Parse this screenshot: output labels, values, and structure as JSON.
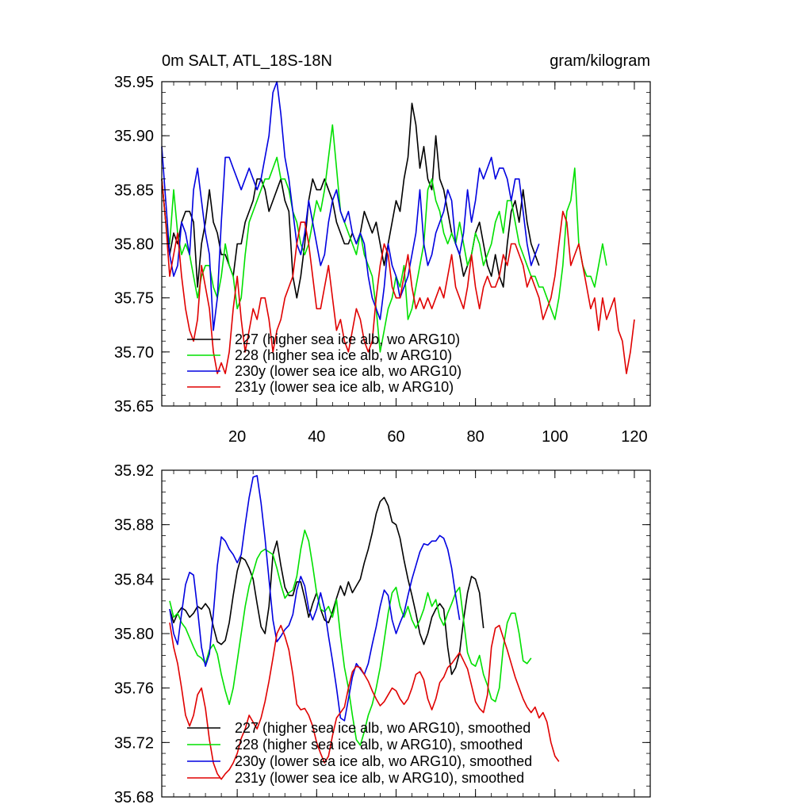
{
  "chart_data": [
    {
      "type": "line",
      "title": "0m SALT, ATL_18S-18N",
      "units": "gram/kilogram",
      "xlim": [
        1,
        124
      ],
      "ylim": [
        35.65,
        35.95
      ],
      "x_ticks": [
        20,
        40,
        60,
        80,
        100,
        120
      ],
      "x_tick_labels": [
        "20",
        "40",
        "60",
        "80",
        "100",
        "120"
      ],
      "y_ticks": [
        35.65,
        35.7,
        35.75,
        35.8,
        35.85,
        35.9,
        35.95
      ],
      "y_tick_labels": [
        "35.65",
        "35.70",
        "35.75",
        "35.80",
        "35.85",
        "35.90",
        "35.95"
      ],
      "legend_position": "bottom-left",
      "series": [
        {
          "name": "227 (higher sea ice alb, wo ARG10)",
          "color": "#000000",
          "x_start": 1,
          "values": [
            35.86,
            35.82,
            35.79,
            35.81,
            35.8,
            35.82,
            35.83,
            35.83,
            35.82,
            35.76,
            35.8,
            35.82,
            35.85,
            35.82,
            35.81,
            35.79,
            35.79,
            35.78,
            35.77,
            35.8,
            35.8,
            35.82,
            35.83,
            35.84,
            35.86,
            35.86,
            35.85,
            35.83,
            35.84,
            35.85,
            35.86,
            35.84,
            35.83,
            35.77,
            35.75,
            35.77,
            35.8,
            35.84,
            35.86,
            35.85,
            35.85,
            35.86,
            35.85,
            35.84,
            35.82,
            35.81,
            35.8,
            35.8,
            35.81,
            35.8,
            35.81,
            35.83,
            35.82,
            35.81,
            35.82,
            35.8,
            35.78,
            35.8,
            35.82,
            35.84,
            35.83,
            35.86,
            35.88,
            35.93,
            35.91,
            35.87,
            35.89,
            35.86,
            35.85,
            35.9,
            35.86,
            35.85,
            35.83,
            35.81,
            35.8,
            35.79,
            35.77,
            35.78,
            35.79,
            35.81,
            35.82,
            35.8,
            35.78,
            35.77,
            35.79,
            35.77,
            35.76,
            35.8,
            35.83,
            35.84,
            35.82,
            35.85,
            35.82,
            35.8,
            35.79,
            35.78
          ]
        },
        {
          "name": "228 (higher sea ice alb, w ARG10)",
          "color": "#00e000",
          "x_start": 1,
          "values": [
            35.86,
            35.82,
            35.8,
            35.85,
            35.81,
            35.79,
            35.8,
            35.79,
            35.77,
            35.75,
            35.77,
            35.78,
            35.78,
            35.76,
            35.75,
            35.77,
            35.8,
            35.78,
            35.77,
            35.74,
            35.75,
            35.79,
            35.82,
            35.83,
            35.84,
            35.85,
            35.86,
            35.86,
            35.87,
            35.88,
            35.86,
            35.86,
            35.85,
            35.83,
            35.82,
            35.8,
            35.79,
            35.8,
            35.82,
            35.84,
            35.83,
            35.85,
            35.88,
            35.91,
            35.87,
            35.83,
            35.82,
            35.81,
            35.8,
            35.79,
            35.81,
            35.79,
            35.78,
            35.77,
            35.74,
            35.7,
            35.72,
            35.74,
            35.75,
            35.77,
            35.76,
            35.78,
            35.73,
            35.74,
            35.76,
            35.78,
            35.8,
            35.85,
            35.86,
            35.84,
            35.83,
            35.81,
            35.8,
            35.81,
            35.8,
            35.82,
            35.8,
            35.78,
            35.79,
            35.81,
            35.8,
            35.78,
            35.79,
            35.8,
            35.82,
            35.83,
            35.81,
            35.84,
            35.84,
            35.82,
            35.8,
            35.79,
            35.78,
            35.77,
            35.77,
            35.76,
            35.76,
            35.75,
            35.74,
            35.73,
            35.75,
            35.78,
            35.83,
            35.84,
            35.87,
            35.8,
            35.78,
            35.77,
            35.77,
            35.76,
            35.78,
            35.8,
            35.78
          ]
        },
        {
          "name": "230y (lower sea ice alb, wo ARG10)",
          "color": "#0000e0",
          "x_start": 1,
          "values": [
            35.89,
            35.84,
            35.79,
            35.77,
            35.78,
            35.82,
            35.81,
            35.79,
            35.85,
            35.87,
            35.84,
            35.81,
            35.79,
            35.72,
            35.75,
            35.82,
            35.88,
            35.88,
            35.87,
            35.86,
            35.85,
            35.86,
            35.87,
            35.86,
            35.85,
            35.86,
            35.88,
            35.9,
            35.94,
            35.95,
            35.92,
            35.88,
            35.86,
            35.83,
            35.8,
            35.79,
            35.81,
            35.84,
            35.82,
            35.8,
            35.78,
            35.79,
            35.82,
            35.84,
            35.85,
            35.83,
            35.82,
            35.83,
            35.81,
            35.8,
            35.81,
            35.8,
            35.77,
            35.75,
            35.74,
            35.73,
            35.76,
            35.8,
            35.78,
            35.77,
            35.75,
            35.76,
            35.77,
            35.79,
            35.81,
            35.85,
            35.8,
            35.78,
            35.79,
            35.81,
            35.82,
            35.83,
            35.85,
            35.84,
            35.8,
            35.79,
            35.81,
            35.85,
            35.82,
            35.84,
            35.87,
            35.86,
            35.87,
            35.88,
            35.86,
            35.87,
            35.87,
            35.86,
            35.84,
            35.86,
            35.86,
            35.83,
            35.8,
            35.78,
            35.79,
            35.8
          ]
        },
        {
          "name": "231y (lower sea ice alb, w ARG10)",
          "color": "#e00000",
          "x_start": 1,
          "values": [
            35.86,
            35.82,
            35.77,
            35.79,
            35.81,
            35.77,
            35.74,
            35.72,
            35.71,
            35.73,
            35.78,
            35.76,
            35.74,
            35.7,
            35.68,
            35.69,
            35.68,
            35.7,
            35.74,
            35.77,
            35.73,
            35.7,
            35.72,
            35.74,
            35.73,
            35.75,
            35.75,
            35.73,
            35.7,
            35.72,
            35.73,
            35.75,
            35.76,
            35.77,
            35.8,
            35.82,
            35.82,
            35.8,
            35.77,
            35.74,
            35.74,
            35.76,
            35.78,
            35.75,
            35.72,
            35.73,
            35.71,
            35.7,
            35.72,
            35.74,
            35.73,
            35.71,
            35.7,
            35.71,
            35.75,
            35.78,
            35.8,
            35.79,
            35.76,
            35.75,
            35.75,
            35.77,
            35.79,
            35.76,
            35.74,
            35.75,
            35.74,
            35.75,
            35.74,
            35.75,
            35.76,
            35.75,
            35.77,
            35.79,
            35.76,
            35.75,
            35.74,
            35.76,
            35.79,
            35.76,
            35.74,
            35.76,
            35.77,
            35.76,
            35.76,
            35.77,
            35.79,
            35.78,
            35.8,
            35.8,
            35.79,
            35.78,
            35.76,
            35.77,
            35.76,
            35.75,
            35.73,
            35.74,
            35.75,
            35.77,
            35.8,
            35.83,
            35.82,
            35.78,
            35.79,
            35.8,
            35.78,
            35.76,
            35.74,
            35.75,
            35.72,
            35.75,
            35.73,
            35.74,
            35.75,
            35.72,
            35.71,
            35.68,
            35.7,
            35.73
          ]
        }
      ]
    },
    {
      "type": "line",
      "title": "",
      "xlim": [
        1,
        124
      ],
      "ylim": [
        35.68,
        35.92
      ],
      "x_ticks": [
        20,
        40,
        60,
        80,
        100,
        120
      ],
      "y_ticks": [
        35.68,
        35.72,
        35.76,
        35.8,
        35.84,
        35.88,
        35.92
      ],
      "y_tick_labels": [
        "35.68",
        "35.72",
        "35.76",
        "35.80",
        "35.84",
        "35.88",
        "35.92"
      ],
      "legend_position": "bottom-left",
      "series": [
        {
          "name": "227 (higher sea ice alb, wo ARG10), smoothed",
          "color": "#000000",
          "x_start": 3,
          "values": [
            35.818,
            35.808,
            35.815,
            35.819,
            35.817,
            35.812,
            35.815,
            35.82,
            35.818,
            35.822,
            35.818,
            35.805,
            35.794,
            35.792,
            35.795,
            35.808,
            35.828,
            35.846,
            35.856,
            35.854,
            35.848,
            35.84,
            35.822,
            35.805,
            35.8,
            35.82,
            35.858,
            35.868,
            35.85,
            35.834,
            35.828,
            35.828,
            35.838,
            35.838,
            35.826,
            35.812,
            35.822,
            35.83,
            35.818,
            35.81,
            35.808,
            35.816,
            35.826,
            35.835,
            35.828,
            35.838,
            35.83,
            35.835,
            35.84,
            35.852,
            35.862,
            35.874,
            35.888,
            35.897,
            35.9,
            35.894,
            35.882,
            35.88,
            35.87,
            35.854,
            35.84,
            35.828,
            35.815,
            35.8,
            35.792,
            35.8,
            35.812,
            35.818,
            35.822,
            35.818,
            35.79,
            35.77,
            35.775,
            35.786,
            35.81,
            35.83,
            35.842,
            35.84,
            35.83,
            35.804
          ]
        },
        {
          "name": "228 (higher sea ice alb, w ARG10), smoothed",
          "color": "#00e000",
          "x_start": 3,
          "values": [
            35.824,
            35.812,
            35.815,
            35.808,
            35.804,
            35.797,
            35.79,
            35.784,
            35.782,
            35.778,
            35.788,
            35.792,
            35.785,
            35.77,
            35.758,
            35.748,
            35.76,
            35.78,
            35.8,
            35.82,
            35.835,
            35.845,
            35.855,
            35.86,
            35.862,
            35.86,
            35.858,
            35.848,
            35.836,
            35.826,
            35.83,
            35.832,
            35.842,
            35.862,
            35.876,
            35.868,
            35.85,
            35.83,
            35.818,
            35.816,
            35.82,
            35.812,
            35.825,
            35.798,
            35.775,
            35.76,
            35.74,
            35.722,
            35.718,
            35.728,
            35.74,
            35.748,
            35.76,
            35.775,
            35.795,
            35.815,
            35.83,
            35.834,
            35.82,
            35.812,
            35.82,
            35.81,
            35.804,
            35.81,
            35.818,
            35.83,
            35.82,
            35.825,
            35.812,
            35.806,
            35.815,
            35.822,
            35.83,
            35.834,
            35.81,
            35.786,
            35.778,
            35.776,
            35.784,
            35.77,
            35.762,
            35.752,
            35.75,
            35.76,
            35.79,
            35.808,
            35.815,
            35.815,
            35.8,
            35.78,
            35.778,
            35.782
          ]
        },
        {
          "name": "230y (lower sea ice alb, wo ARG10), smoothed",
          "color": "#0000e0",
          "x_start": 3,
          "values": [
            35.818,
            35.8,
            35.792,
            35.815,
            35.836,
            35.845,
            35.843,
            35.818,
            35.79,
            35.776,
            35.785,
            35.815,
            35.85,
            35.871,
            35.868,
            35.862,
            35.858,
            35.852,
            35.858,
            35.88,
            35.9,
            35.915,
            35.916,
            35.896,
            35.87,
            35.84,
            35.81,
            35.794,
            35.798,
            35.803,
            35.806,
            35.814,
            35.832,
            35.842,
            35.835,
            35.818,
            35.81,
            35.818,
            35.83,
            35.818,
            35.798,
            35.78,
            35.76,
            35.738,
            35.736,
            35.752,
            35.768,
            35.778,
            35.774,
            35.77,
            35.778,
            35.792,
            35.805,
            35.82,
            35.832,
            35.828,
            35.81,
            35.8,
            35.808,
            35.815,
            35.828,
            35.84,
            35.85,
            35.86,
            35.866,
            35.865,
            35.868,
            35.868,
            35.872,
            35.87,
            35.862,
            35.848,
            35.828,
            35.81
          ]
        },
        {
          "name": "231y (lower sea ice alb, w ARG10), smoothed",
          "color": "#e00000",
          "x_start": 3,
          "values": [
            35.808,
            35.79,
            35.778,
            35.76,
            35.74,
            35.732,
            35.74,
            35.755,
            35.76,
            35.745,
            35.722,
            35.705,
            35.697,
            35.693,
            35.697,
            35.7,
            35.705,
            35.712,
            35.723,
            35.73,
            35.74,
            35.735,
            35.73,
            35.738,
            35.75,
            35.765,
            35.782,
            35.8,
            35.806,
            35.798,
            35.788,
            35.77,
            35.748,
            35.744,
            35.745,
            35.74,
            35.732,
            35.72,
            35.712,
            35.705,
            35.71,
            35.725,
            35.738,
            35.742,
            35.746,
            35.76,
            35.772,
            35.776,
            35.775,
            35.77,
            35.765,
            35.758,
            35.752,
            35.747,
            35.75,
            35.755,
            35.76,
            35.758,
            35.752,
            35.748,
            35.752,
            35.76,
            35.77,
            35.772,
            35.766,
            35.752,
            35.744,
            35.752,
            35.764,
            35.768,
            35.775,
            35.778,
            35.782,
            35.786,
            35.78,
            35.774,
            35.762,
            35.75,
            35.745,
            35.742,
            35.755,
            35.79,
            35.804,
            35.806,
            35.797,
            35.788,
            35.778,
            35.768,
            35.76,
            35.752,
            35.746,
            35.742,
            35.746,
            35.738,
            35.742,
            35.735,
            35.72,
            35.71,
            35.706
          ]
        }
      ]
    }
  ]
}
